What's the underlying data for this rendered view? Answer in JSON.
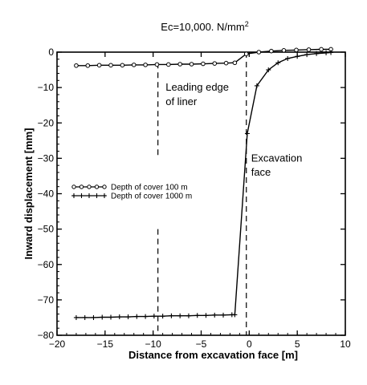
{
  "chart_data": {
    "type": "line",
    "title": "Ec=10,000. N/mm",
    "title_sup": "2",
    "xlabel": "Distance from excavation face [m]",
    "ylabel": "Inward displacement [mm]",
    "xlim": [
      -20,
      10
    ],
    "ylim": [
      -80,
      0
    ],
    "xticks": [
      -20,
      -15,
      -10,
      -5,
      0,
      5,
      10
    ],
    "yticks": [
      0,
      -10,
      -20,
      -30,
      -40,
      -50,
      -60,
      -70,
      -80
    ],
    "grid": false,
    "legend_position": "center-left",
    "annotations": [
      {
        "text": "Leading edge",
        "x": -8.7,
        "y": -10
      },
      {
        "text": "of liner",
        "x": -8.7,
        "y": -14
      },
      {
        "text": "Excavation",
        "x": 0.2,
        "y": -30
      },
      {
        "text": "face",
        "x": 0.2,
        "y": -34
      }
    ],
    "reference_lines": [
      {
        "x": -9.5,
        "from": -3,
        "to": -30
      },
      {
        "x": -9.5,
        "from": -50,
        "to": -80
      },
      {
        "x": -0.3,
        "from": 0,
        "to": -80
      }
    ],
    "series": [
      {
        "name": "Depth of cover  100  m",
        "marker": "circle",
        "x": [
          -18,
          -16.8,
          -15.6,
          -14.4,
          -13.2,
          -12,
          -10.8,
          -9.6,
          -8.4,
          -7.2,
          -6,
          -4.8,
          -3.6,
          -2.4,
          -1.5,
          -0.3,
          1,
          2.3,
          3.6,
          4.9,
          6.2,
          7.5,
          8.5
        ],
        "y": [
          -3.8,
          -3.8,
          -3.7,
          -3.7,
          -3.7,
          -3.6,
          -3.6,
          -3.5,
          -3.5,
          -3.4,
          -3.4,
          -3.3,
          -3.2,
          -3.1,
          -3.0,
          -0.5,
          0,
          0.3,
          0.5,
          0.6,
          0.7,
          0.8,
          0.8
        ]
      },
      {
        "name": "Depth of cover 1000  m",
        "marker": "plus",
        "x": [
          -18,
          -17.1,
          -16.2,
          -15.3,
          -14.4,
          -13.5,
          -12.6,
          -11.7,
          -10.8,
          -9.9,
          -9,
          -8.1,
          -7.2,
          -6.3,
          -5.4,
          -4.5,
          -3.6,
          -2.7,
          -1.8,
          -1.5,
          -0.2,
          0.8,
          2.0,
          3.0,
          4.0,
          5.0,
          6.0,
          7.0,
          8.0,
          8.5
        ],
        "y": [
          -75,
          -75,
          -75,
          -74.9,
          -74.9,
          -74.8,
          -74.8,
          -74.7,
          -74.7,
          -74.6,
          -74.6,
          -74.5,
          -74.5,
          -74.5,
          -74.4,
          -74.4,
          -74.3,
          -74.3,
          -74.2,
          -74.2,
          -23,
          -9.5,
          -5,
          -3,
          -1.8,
          -1.2,
          -0.7,
          -0.4,
          -0.2,
          -0.1
        ]
      }
    ]
  }
}
